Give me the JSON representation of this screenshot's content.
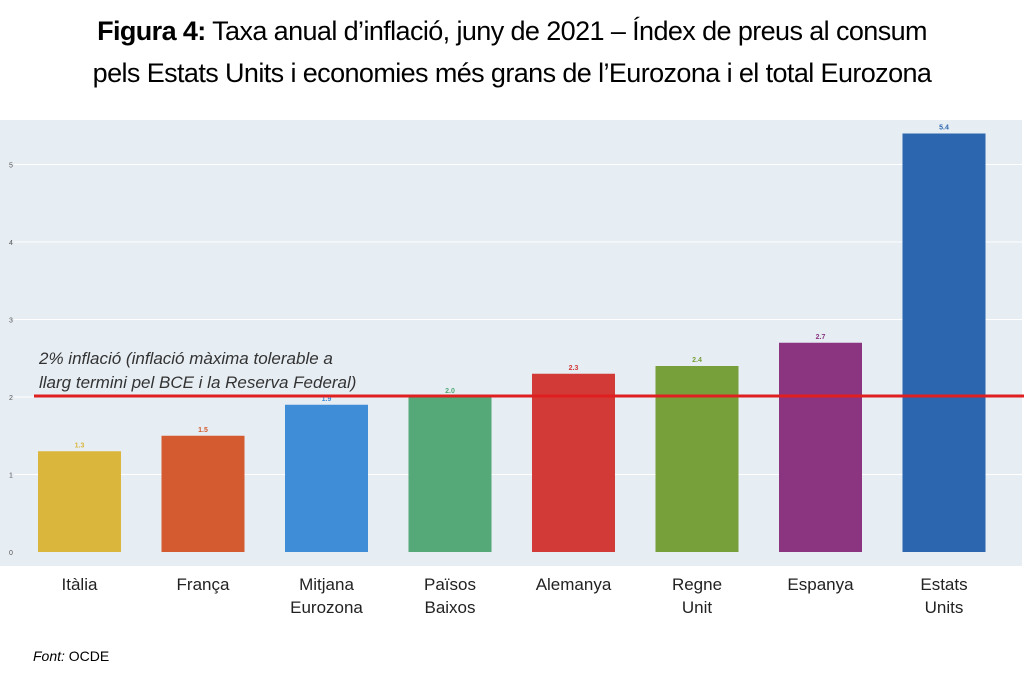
{
  "title": {
    "lead": "Figura 4:",
    "line1": "Taxa anual d’inflació, juny de 2021 – Índex de preus al consum",
    "line2": "pels Estats Units i economies més grans de l’Eurozona i el total Eurozona"
  },
  "chart_data": {
    "type": "bar",
    "title": "",
    "xlabel": "",
    "ylabel": "",
    "categories": [
      "Itàlia",
      "França",
      "Mitjana Eurozona",
      "Països Baixos",
      "Alemanya",
      "Regne Unit",
      "Espanya",
      "Estats Units"
    ],
    "category_lines": [
      [
        "Itàlia"
      ],
      [
        "França"
      ],
      [
        "Mitjana",
        "Eurozona"
      ],
      [
        "Països",
        "Baixos"
      ],
      [
        "Alemanya"
      ],
      [
        "Regne",
        "Unit"
      ],
      [
        "Espanya"
      ],
      [
        "Estats",
        "Units"
      ]
    ],
    "values": [
      1.3,
      1.5,
      1.9,
      2.0,
      2.3,
      2.4,
      2.7,
      5.4
    ],
    "value_labels": [
      "1.3",
      "1.5",
      "1.9",
      "2.0",
      "2.3",
      "2.4",
      "2.7",
      "5.4"
    ],
    "colors": [
      "#dab63c",
      "#d45a30",
      "#3e8dd6",
      "#55a877",
      "#d23a37",
      "#78a03a",
      "#8b3580",
      "#2c66ae"
    ],
    "ylim": [
      0,
      5.5
    ],
    "yticks": [
      0,
      1,
      2,
      3,
      4,
      5
    ],
    "grid": true,
    "reference_line": {
      "value": 2.0,
      "color": "#e02020",
      "label_line1": "2% inflació (inflació màxima tolerable a",
      "label_line2": "llarg termini pel BCE i la Reserva Federal)"
    },
    "background_color": "#e6edf3"
  },
  "source": {
    "label": "Font:",
    "value": "OCDE"
  }
}
